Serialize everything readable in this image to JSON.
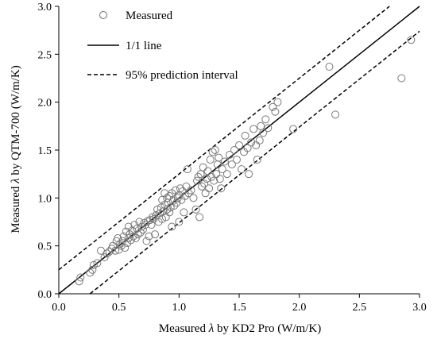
{
  "chart_data": {
    "type": "scatter",
    "xlabel_prefix": "Measured ",
    "xlabel_symbol": "λ",
    "xlabel_suffix": " by KD2 Pro (W/m/K)",
    "ylabel_prefix": "Measured ",
    "ylabel_symbol": "λ",
    "ylabel_suffix": " by QTM-700 (W/m/K)",
    "xlim": [
      0,
      3
    ],
    "ylim": [
      0,
      3
    ],
    "x_ticks": [
      "0.0",
      "0.5",
      "1.0",
      "1.5",
      "2.0",
      "2.5",
      "3.0"
    ],
    "y_ticks": [
      "0.0",
      "0.5",
      "1.0",
      "1.5",
      "2.0",
      "2.5",
      "3.0"
    ],
    "grid": false,
    "legend_position": "top-left",
    "legend": {
      "measured": "Measured",
      "one_to_one": "1/1 line",
      "prediction": "95% prediction interval"
    },
    "lines": {
      "one_to_one": {
        "x": [
          0,
          3
        ],
        "y": [
          0,
          3
        ]
      },
      "upper_interval": {
        "x": [
          0,
          2.75
        ],
        "y": [
          0.25,
          3.0
        ]
      },
      "lower_interval": {
        "x": [
          0.26,
          3.0
        ],
        "y": [
          0,
          2.74
        ]
      }
    },
    "series": [
      {
        "name": "Measured",
        "points": [
          [
            0.17,
            0.13
          ],
          [
            0.18,
            0.17
          ],
          [
            0.26,
            0.22
          ],
          [
            0.28,
            0.25
          ],
          [
            0.29,
            0.3
          ],
          [
            0.32,
            0.32
          ],
          [
            0.35,
            0.45
          ],
          [
            0.38,
            0.38
          ],
          [
            0.4,
            0.42
          ],
          [
            0.42,
            0.44
          ],
          [
            0.44,
            0.47
          ],
          [
            0.45,
            0.5
          ],
          [
            0.47,
            0.45
          ],
          [
            0.48,
            0.55
          ],
          [
            0.49,
            0.58
          ],
          [
            0.5,
            0.46
          ],
          [
            0.51,
            0.52
          ],
          [
            0.52,
            0.5
          ],
          [
            0.53,
            0.55
          ],
          [
            0.54,
            0.6
          ],
          [
            0.55,
            0.48
          ],
          [
            0.56,
            0.65
          ],
          [
            0.57,
            0.53
          ],
          [
            0.58,
            0.58
          ],
          [
            0.58,
            0.7
          ],
          [
            0.59,
            0.62
          ],
          [
            0.6,
            0.56
          ],
          [
            0.61,
            0.66
          ],
          [
            0.62,
            0.6
          ],
          [
            0.63,
            0.72
          ],
          [
            0.64,
            0.58
          ],
          [
            0.65,
            0.68
          ],
          [
            0.66,
            0.62
          ],
          [
            0.67,
            0.75
          ],
          [
            0.68,
            0.64
          ],
          [
            0.69,
            0.7
          ],
          [
            0.7,
            0.67
          ],
          [
            0.71,
            0.74
          ],
          [
            0.72,
            0.72
          ],
          [
            0.73,
            0.55
          ],
          [
            0.74,
            0.76
          ],
          [
            0.75,
            0.6
          ],
          [
            0.76,
            0.77
          ],
          [
            0.77,
            0.72
          ],
          [
            0.78,
            0.8
          ],
          [
            0.79,
            0.78
          ],
          [
            0.8,
            0.62
          ],
          [
            0.81,
            0.82
          ],
          [
            0.82,
            0.88
          ],
          [
            0.83,
            0.75
          ],
          [
            0.84,
            0.84
          ],
          [
            0.85,
            0.9
          ],
          [
            0.86,
            0.78
          ],
          [
            0.86,
            0.98
          ],
          [
            0.87,
            0.86
          ],
          [
            0.88,
            0.93
          ],
          [
            0.88,
            1.05
          ],
          [
            0.89,
            0.8
          ],
          [
            0.9,
            0.88
          ],
          [
            0.9,
            1.0
          ],
          [
            0.91,
            0.95
          ],
          [
            0.92,
            0.85
          ],
          [
            0.92,
            1.02
          ],
          [
            0.93,
            0.9
          ],
          [
            0.94,
            0.7
          ],
          [
            0.94,
            1.05
          ],
          [
            0.95,
            0.97
          ],
          [
            0.96,
            0.92
          ],
          [
            0.97,
            1.08
          ],
          [
            0.98,
            0.95
          ],
          [
            0.99,
            1.0
          ],
          [
            1.0,
            0.75
          ],
          [
            1.0,
            1.03
          ],
          [
            1.01,
            1.1
          ],
          [
            1.02,
            0.98
          ],
          [
            1.03,
            1.07
          ],
          [
            1.04,
            0.85
          ],
          [
            1.05,
            1.02
          ],
          [
            1.06,
            1.12
          ],
          [
            1.07,
            1.3
          ],
          [
            1.08,
            1.05
          ],
          [
            1.1,
            1.08
          ],
          [
            1.12,
            1.0
          ],
          [
            1.14,
            0.88
          ],
          [
            1.15,
            1.18
          ],
          [
            1.16,
            1.22
          ],
          [
            1.17,
            0.8
          ],
          [
            1.18,
            1.25
          ],
          [
            1.19,
            1.12
          ],
          [
            1.2,
            1.32
          ],
          [
            1.21,
            1.15
          ],
          [
            1.22,
            1.05
          ],
          [
            1.23,
            1.2
          ],
          [
            1.24,
            1.28
          ],
          [
            1.25,
            1.1
          ],
          [
            1.26,
            1.4
          ],
          [
            1.27,
            1.22
          ],
          [
            1.28,
            1.48
          ],
          [
            1.29,
            1.18
          ],
          [
            1.3,
            1.5
          ],
          [
            1.31,
            1.25
          ],
          [
            1.32,
            1.35
          ],
          [
            1.33,
            1.42
          ],
          [
            1.34,
            1.2
          ],
          [
            1.35,
            1.1
          ],
          [
            1.36,
            1.3
          ],
          [
            1.38,
            1.38
          ],
          [
            1.4,
            1.25
          ],
          [
            1.42,
            1.45
          ],
          [
            1.44,
            1.35
          ],
          [
            1.46,
            1.5
          ],
          [
            1.48,
            1.4
          ],
          [
            1.5,
            1.55
          ],
          [
            1.52,
            1.3
          ],
          [
            1.54,
            1.48
          ],
          [
            1.55,
            1.65
          ],
          [
            1.57,
            1.52
          ],
          [
            1.58,
            1.25
          ],
          [
            1.6,
            1.58
          ],
          [
            1.62,
            1.72
          ],
          [
            1.64,
            1.55
          ],
          [
            1.65,
            1.4
          ],
          [
            1.67,
            1.6
          ],
          [
            1.68,
            1.75
          ],
          [
            1.7,
            1.68
          ],
          [
            1.72,
            1.82
          ],
          [
            1.74,
            1.73
          ],
          [
            1.78,
            1.95
          ],
          [
            1.8,
            1.9
          ],
          [
            1.82,
            2.0
          ],
          [
            1.95,
            1.72
          ],
          [
            2.25,
            2.37
          ],
          [
            2.3,
            1.87
          ],
          [
            2.85,
            2.25
          ],
          [
            2.93,
            2.65
          ]
        ]
      }
    ]
  }
}
